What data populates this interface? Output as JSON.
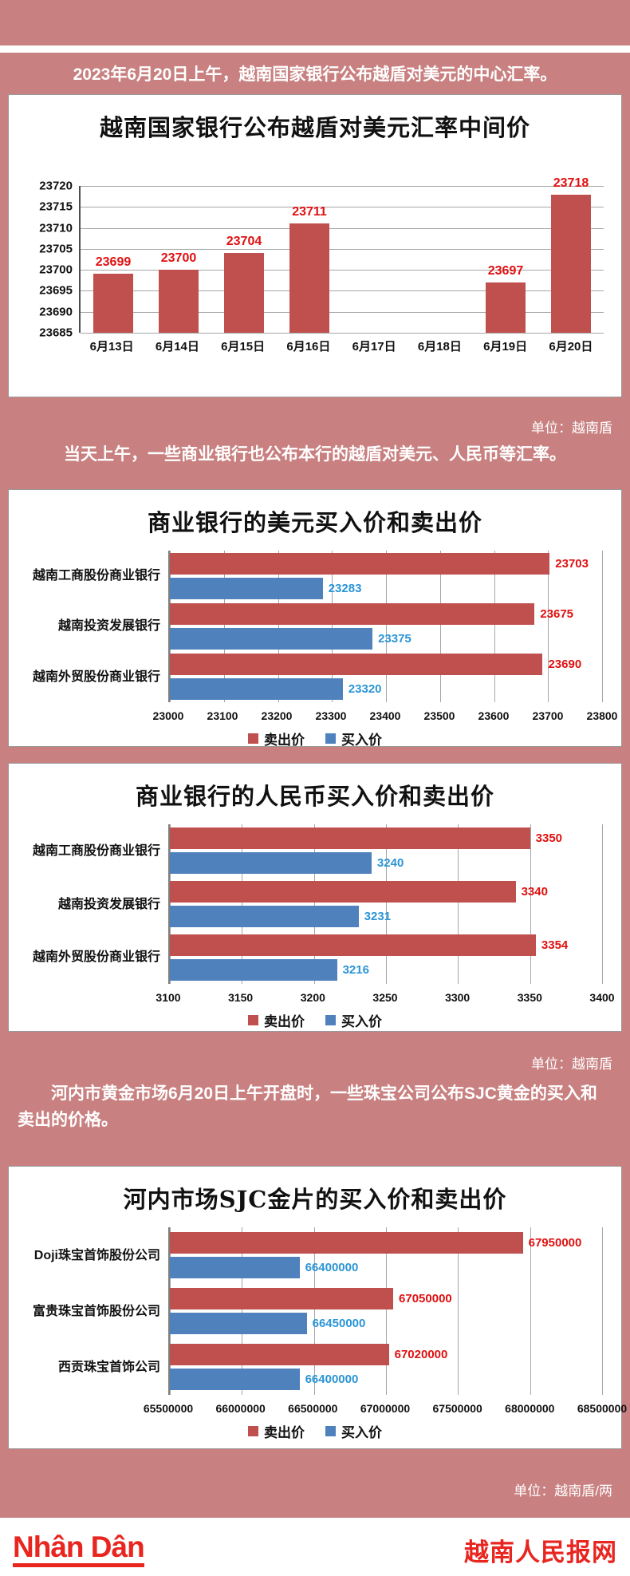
{
  "page": {
    "intro1": "2023年6月20日上午，越南国家银行公布越盾对美元的中心汇率。",
    "intro2": "当天上午，一些商业银行也公布本行的越盾对美元、人民币等汇率。",
    "intro3": "河内市黄金市场6月20日上午开盘时，一些珠宝公司公布SJC黄金的买入和卖出的价格。",
    "unit_note_vnd": "单位：越南盾",
    "unit_note_vnd2": "单位：越南盾",
    "unit_note_gold": "单位：越南盾/两",
    "footer": {
      "logo": "Nhân Dân",
      "site_name": "越南人民报网"
    }
  },
  "colors": {
    "background_pink": "#c98080",
    "sell_bar": "#c0504d",
    "buy_bar": "#4f81bd",
    "sell_label": "#e01010",
    "buy_label": "#2b95d6",
    "brand_red": "#e8251f"
  },
  "chart_data": [
    {
      "type": "bar",
      "title": "越南国家银行公布越盾对美元汇率中间价",
      "categories": [
        "6月13日",
        "6月14日",
        "6月15日",
        "6月16日",
        "6月17日",
        "6月18日",
        "6月19日",
        "6月20日"
      ],
      "values": [
        23699,
        23700,
        23704,
        23711,
        null,
        null,
        23697,
        23718
      ],
      "ylim": [
        23685,
        23720
      ],
      "yticks": [
        23685,
        23690,
        23695,
        23700,
        23705,
        23710,
        23715,
        23720
      ],
      "grid": true,
      "bar_color": "#c0504d",
      "label_color": "#e01010",
      "unit": "越南盾"
    },
    {
      "type": "bar-horizontal",
      "title": "商业银行的美元买入价和卖出价",
      "categories": [
        "越南工商股份商业银行",
        "越南投资发展银行",
        "越南外贸股份商业银行"
      ],
      "series": [
        {
          "name": "卖出价",
          "color": "#c0504d",
          "label_color": "#e01010",
          "values": [
            23703,
            23675,
            23690
          ]
        },
        {
          "name": "买入价",
          "color": "#4f81bd",
          "label_color": "#2b95d6",
          "values": [
            23283,
            23375,
            23320
          ]
        }
      ],
      "xlim": [
        23000,
        23800
      ],
      "xticks": [
        23000,
        23100,
        23200,
        23300,
        23400,
        23500,
        23600,
        23700,
        23800
      ],
      "grid": true,
      "legend_position": "bottom",
      "unit": "越南盾"
    },
    {
      "type": "bar-horizontal",
      "title": "商业银行的人民币买入价和卖出价",
      "categories": [
        "越南工商股份商业银行",
        "越南投资发展银行",
        "越南外贸股份商业银行"
      ],
      "series": [
        {
          "name": "卖出价",
          "color": "#c0504d",
          "label_color": "#e01010",
          "values": [
            3350,
            3340,
            3354
          ]
        },
        {
          "name": "买入价",
          "color": "#4f81bd",
          "label_color": "#2b95d6",
          "values": [
            3240,
            3231,
            3216
          ]
        }
      ],
      "xlim": [
        3100,
        3400
      ],
      "xticks": [
        3100,
        3150,
        3200,
        3250,
        3300,
        3350,
        3400
      ],
      "grid": true,
      "legend_position": "bottom",
      "unit": "越南盾"
    },
    {
      "type": "bar-horizontal",
      "title": "河内市场SJC金片的买入价和卖出价",
      "categories": [
        "Doji珠宝首饰股份公司",
        "富贵珠宝首饰股份公司",
        "西贡珠宝首饰公司"
      ],
      "series": [
        {
          "name": "卖出价",
          "color": "#c0504d",
          "label_color": "#e01010",
          "values": [
            67950000,
            67050000,
            67020000
          ]
        },
        {
          "name": "买入价",
          "color": "#4f81bd",
          "label_color": "#2b95d6",
          "values": [
            66400000,
            66450000,
            66400000
          ]
        }
      ],
      "xlim": [
        65500000,
        68500000
      ],
      "xticks": [
        65500000,
        66000000,
        66500000,
        67000000,
        67500000,
        68000000,
        68500000
      ],
      "grid": true,
      "legend_position": "bottom",
      "unit": "越南盾/两"
    }
  ]
}
